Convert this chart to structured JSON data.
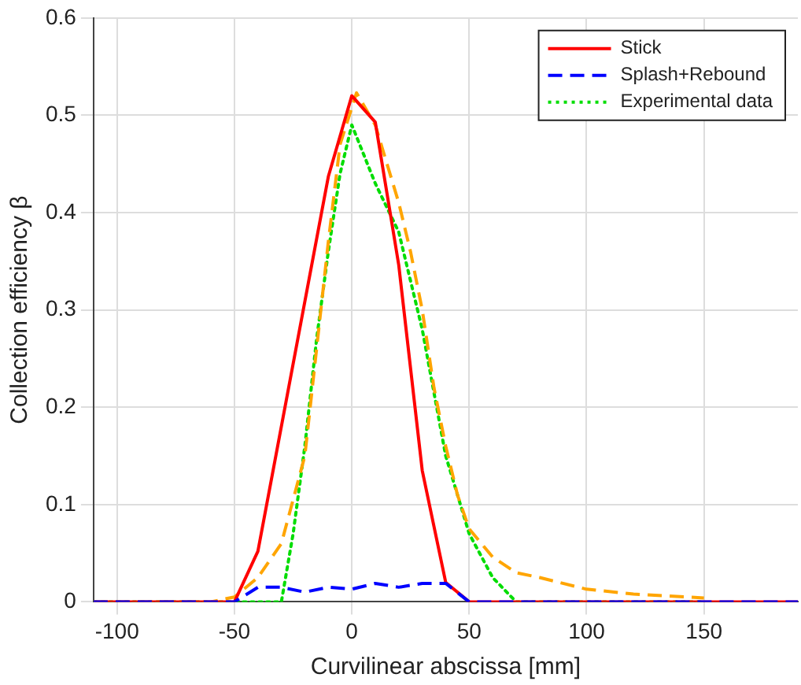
{
  "chart_data": {
    "type": "line",
    "xlabel": "Curvilinear abscissa [mm]",
    "ylabel": "Collection efficiency β",
    "xlim": [
      -110,
      190
    ],
    "ylim": [
      0,
      0.6
    ],
    "xticks": [
      -100,
      -50,
      0,
      50,
      100,
      150
    ],
    "yticks": [
      0,
      0.1,
      0.2,
      0.3,
      0.4,
      0.5,
      0.6
    ],
    "grid": true,
    "legend": "top right",
    "marker": "none",
    "series": [
      {
        "name": "Stick",
        "color": "#ff0000",
        "line_style": "solid",
        "x": [
          -110,
          -50,
          -40,
          -10,
          0,
          10,
          20,
          30,
          40,
          50,
          190
        ],
        "values": [
          0,
          0,
          0.052,
          0.437,
          0.52,
          0.493,
          0.346,
          0.135,
          0.02,
          0,
          0
        ]
      },
      {
        "name": "Splash+Rebound",
        "color": "#0000ff",
        "line_style": "dashed",
        "x": [
          -110,
          -50,
          -40,
          -30,
          -20,
          -10,
          0,
          10,
          20,
          30,
          40,
          50,
          190
        ],
        "values": [
          0,
          0,
          0.015,
          0.015,
          0.01,
          0.015,
          0.013,
          0.019,
          0.015,
          0.019,
          0.019,
          0,
          0
        ]
      },
      {
        "color": "#ffa500",
        "line_style": "dashed",
        "x": [
          -110,
          -60,
          -50,
          -40,
          -30,
          -20,
          -15,
          -10,
          -5,
          2,
          10,
          20,
          25,
          30,
          35,
          40,
          45,
          50,
          60,
          70,
          80,
          100,
          120,
          150
        ],
        "values": [
          0,
          0,
          0.005,
          0.025,
          0.06,
          0.15,
          0.26,
          0.37,
          0.47,
          0.523,
          0.49,
          0.41,
          0.36,
          0.3,
          0.22,
          0.16,
          0.11,
          0.075,
          0.046,
          0.03,
          0.025,
          0.013,
          0.008,
          0.004
        ]
      },
      {
        "name": "Experimental data",
        "color": "#00dd00",
        "line_style": "dotted",
        "x": [
          -110,
          -30,
          -25,
          -20,
          -15,
          -10,
          -5,
          0,
          5,
          10,
          20,
          30,
          40,
          50,
          60,
          70,
          150
        ],
        "values": [
          0,
          0,
          0.07,
          0.16,
          0.27,
          0.36,
          0.44,
          0.49,
          0.46,
          0.43,
          0.38,
          0.28,
          0.15,
          0.07,
          0.025,
          0,
          0
        ]
      }
    ]
  }
}
